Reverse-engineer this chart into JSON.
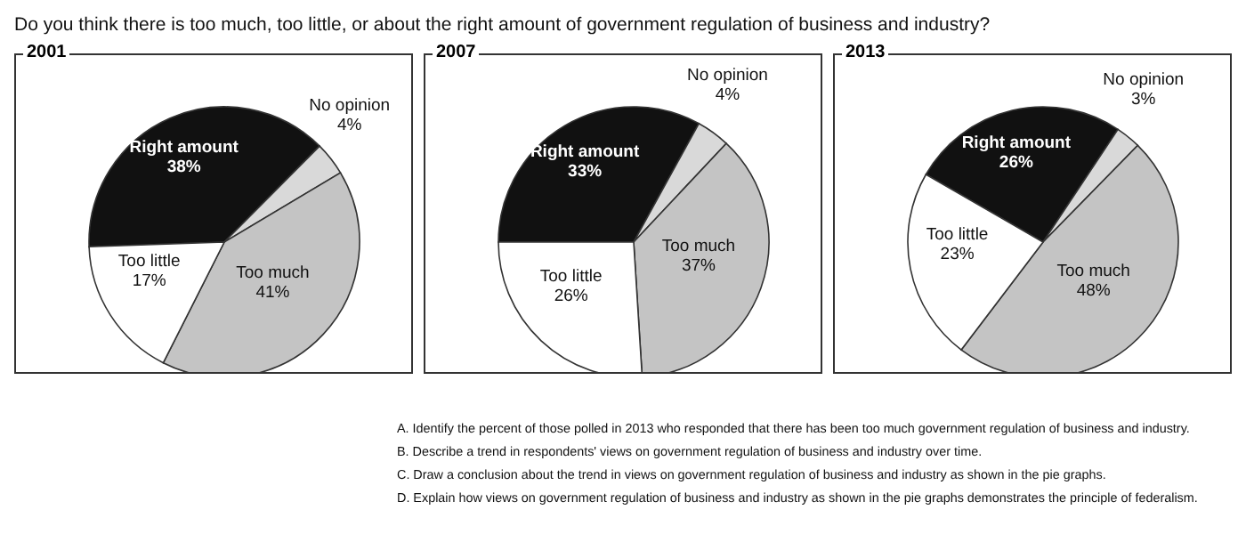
{
  "chart_data": [
    {
      "type": "other",
      "title": "Do you think there is too much, too little, or about the right amount of government regulation of business and industry?"
    },
    {
      "type": "pie",
      "title": "2001",
      "categories": [
        "Right amount",
        "No opinion",
        "Too much",
        "Too little"
      ],
      "values": [
        38,
        4,
        41,
        17
      ],
      "value_labels": [
        "38%",
        "4%",
        "41%",
        "17%"
      ],
      "colors": [
        "#111111",
        "#d9d9d9",
        "#c4c4c4",
        "#ffffff"
      ]
    },
    {
      "type": "pie",
      "title": "2007",
      "categories": [
        "Right amount",
        "No opinion",
        "Too much",
        "Too little"
      ],
      "values": [
        33,
        4,
        37,
        26
      ],
      "value_labels": [
        "33%",
        "4%",
        "37%",
        "26%"
      ],
      "colors": [
        "#111111",
        "#d9d9d9",
        "#c4c4c4",
        "#ffffff"
      ]
    },
    {
      "type": "pie",
      "title": "2013",
      "categories": [
        "Right amount",
        "No opinion",
        "Too much",
        "Too little"
      ],
      "values": [
        26,
        3,
        48,
        23
      ],
      "value_labels": [
        "26%",
        "3%",
        "48%",
        "23%"
      ],
      "colors": [
        "#111111",
        "#d9d9d9",
        "#c4c4c4",
        "#ffffff"
      ]
    },
    {
      "type": "other",
      "annotations": [
        "A. Identify the percent of those polled in 2013 who responded that there has been too much government regulation of business and industry.",
        "B. Describe a trend in respondents' views on government regulation of business and industry over time.",
        "C. Draw a conclusion about the trend in views on government regulation of business and industry as shown in the pie graphs.",
        "D. Explain how views on government regulation of business and industry as shown in the pie graphs demonstrates the principle of federalism."
      ]
    }
  ]
}
